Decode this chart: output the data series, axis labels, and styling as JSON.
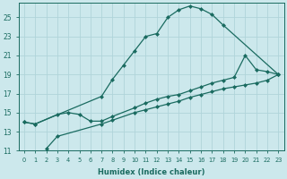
{
  "xlabel": "Humidex (Indice chaleur)",
  "bg_color": "#cce8ec",
  "grid_color": "#b0d4da",
  "line_color": "#1a6b60",
  "xlim": [
    -0.5,
    23.5
  ],
  "ylim": [
    11,
    26.5
  ],
  "yticks": [
    11,
    13,
    15,
    17,
    19,
    21,
    23,
    25
  ],
  "xticks": [
    0,
    1,
    2,
    3,
    4,
    5,
    6,
    7,
    8,
    9,
    10,
    11,
    12,
    13,
    14,
    15,
    16,
    17,
    18,
    19,
    20,
    21,
    22,
    23
  ],
  "curve1_x": [
    0,
    1,
    7,
    8,
    9,
    10,
    11,
    12,
    13,
    14,
    15,
    16,
    17,
    18,
    23
  ],
  "curve1_y": [
    14.0,
    13.8,
    16.7,
    18.5,
    20.0,
    21.5,
    23.0,
    23.3,
    25.0,
    25.8,
    26.2,
    25.9,
    25.3,
    24.2,
    19.0
  ],
  "curve2_x": [
    0,
    1,
    3,
    4,
    5,
    6,
    7,
    8,
    10,
    11,
    12,
    13,
    14,
    15,
    16,
    17,
    18,
    19,
    20,
    21,
    22,
    23
  ],
  "curve2_y": [
    14.0,
    13.8,
    14.8,
    15.0,
    14.8,
    14.1,
    14.1,
    14.6,
    15.5,
    16.0,
    16.4,
    16.7,
    16.9,
    17.3,
    17.7,
    18.1,
    18.4,
    18.7,
    21.0,
    19.5,
    19.3,
    19.0
  ],
  "curve3_x": [
    2,
    3,
    7,
    8,
    10,
    11,
    12,
    13,
    14,
    15,
    16,
    17,
    18,
    19,
    20,
    21,
    22,
    23
  ],
  "curve3_y": [
    11.2,
    12.5,
    13.8,
    14.2,
    15.0,
    15.3,
    15.6,
    15.9,
    16.2,
    16.6,
    16.9,
    17.2,
    17.5,
    17.7,
    17.9,
    18.1,
    18.4,
    19.0
  ],
  "marker": "D",
  "marker_size": 2.0,
  "linewidth": 0.9
}
